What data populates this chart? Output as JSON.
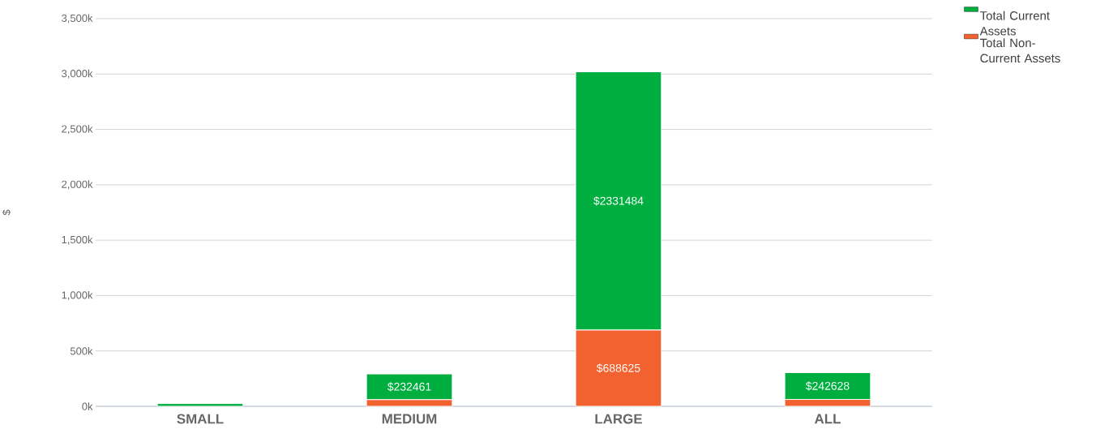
{
  "chart_data": {
    "type": "bar",
    "stacked": true,
    "ylabel": "$",
    "categories": [
      "SMALL",
      "MEDIUM",
      "LARGE",
      "ALL"
    ],
    "series": [
      {
        "name": "Total Non-Current Assets",
        "color": "#f26230",
        "values": [
          null,
          60000,
          688625,
          62000
        ],
        "value_labels": [
          null,
          null,
          "$688625",
          null
        ]
      },
      {
        "name": "Total Current Assets",
        "color": "#00ae3f",
        "values": [
          25000,
          232461,
          2331484,
          242628
        ],
        "value_labels": [
          null,
          "$232461",
          "$2331484",
          "$242628"
        ]
      }
    ],
    "ylim": [
      0,
      3500000
    ],
    "yticks": [
      {
        "value": 0,
        "label": "0k"
      },
      {
        "value": 500000,
        "label": "500k"
      },
      {
        "value": 1000000,
        "label": "1,000k"
      },
      {
        "value": 1500000,
        "label": "1,500k"
      },
      {
        "value": 2000000,
        "label": "2,000k"
      },
      {
        "value": 2500000,
        "label": "2,500k"
      },
      {
        "value": 3000000,
        "label": "3,000k"
      },
      {
        "value": 3500000,
        "label": "3,500k"
      }
    ],
    "grid": "y",
    "legend": "top right"
  }
}
